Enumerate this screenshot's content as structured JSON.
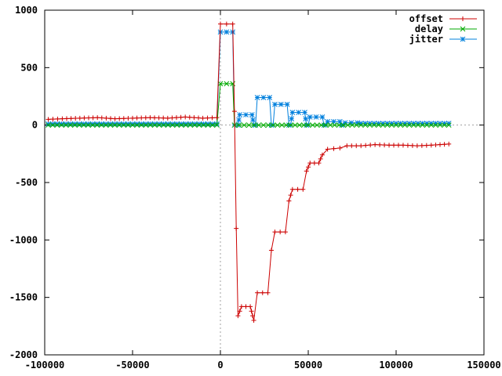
{
  "chart_data": {
    "type": "line",
    "title": "",
    "xlabel": "",
    "ylabel": "",
    "xlim": [
      -100000,
      150000
    ],
    "ylim": [
      -2000,
      1000
    ],
    "x_ticks": [
      -100000,
      -50000,
      0,
      50000,
      100000,
      150000
    ],
    "y_ticks": [
      -2000,
      -1500,
      -1000,
      -500,
      0,
      500,
      1000
    ],
    "x_tick_labels": [
      "-100000",
      "-50000",
      "0",
      "50000",
      "100000",
      "150000"
    ],
    "y_tick_labels": [
      "-2000",
      "-1500",
      "-1000",
      "-500",
      "0",
      "500",
      "1000"
    ],
    "grid": false,
    "zero_axes": true,
    "legend_position": "top-right",
    "series": [
      {
        "name": "offset",
        "color": "#cc0000",
        "marker": "plus",
        "points": [
          [
            -98000,
            50
          ],
          [
            -90000,
            55
          ],
          [
            -80000,
            60
          ],
          [
            -70000,
            65
          ],
          [
            -60000,
            55
          ],
          [
            -50000,
            60
          ],
          [
            -40000,
            65
          ],
          [
            -30000,
            60
          ],
          [
            -20000,
            70
          ],
          [
            -10000,
            60
          ],
          [
            -2000,
            65
          ],
          [
            0,
            880
          ],
          [
            7000,
            880
          ],
          [
            8000,
            120
          ],
          [
            9000,
            -900
          ],
          [
            10000,
            -1660
          ],
          [
            12000,
            -1580
          ],
          [
            17000,
            -1580
          ],
          [
            19000,
            -1700
          ],
          [
            21000,
            -1460
          ],
          [
            27000,
            -1460
          ],
          [
            29000,
            -1090
          ],
          [
            31000,
            -930
          ],
          [
            37000,
            -930
          ],
          [
            39000,
            -660
          ],
          [
            41000,
            -560
          ],
          [
            47000,
            -560
          ],
          [
            49000,
            -400
          ],
          [
            51000,
            -330
          ],
          [
            56000,
            -330
          ],
          [
            58000,
            -260
          ],
          [
            61000,
            -210
          ],
          [
            68000,
            -200
          ],
          [
            72000,
            -180
          ],
          [
            80000,
            -180
          ],
          [
            88000,
            -170
          ],
          [
            96000,
            -175
          ],
          [
            104000,
            -175
          ],
          [
            112000,
            -180
          ],
          [
            120000,
            -175
          ],
          [
            130000,
            -165
          ]
        ]
      },
      {
        "name": "delay",
        "color": "#00aa00",
        "marker": "cross",
        "points": [
          [
            -98000,
            0
          ],
          [
            -50000,
            0
          ],
          [
            -2000,
            0
          ],
          [
            0,
            360
          ],
          [
            7000,
            360
          ],
          [
            8000,
            0
          ],
          [
            30000,
            0
          ],
          [
            60000,
            0
          ],
          [
            90000,
            0
          ],
          [
            130000,
            0
          ]
        ]
      },
      {
        "name": "jitter",
        "color": "#0080dd",
        "marker": "star",
        "points": [
          [
            -98000,
            10
          ],
          [
            -50000,
            10
          ],
          [
            -2000,
            10
          ],
          [
            0,
            810
          ],
          [
            7000,
            810
          ],
          [
            8000,
            0
          ],
          [
            10000,
            0
          ],
          [
            11000,
            90
          ],
          [
            18000,
            90
          ],
          [
            19000,
            0
          ],
          [
            20000,
            0
          ],
          [
            21000,
            240
          ],
          [
            28000,
            240
          ],
          [
            29000,
            0
          ],
          [
            30000,
            0
          ],
          [
            31000,
            180
          ],
          [
            38000,
            180
          ],
          [
            39000,
            0
          ],
          [
            40000,
            0
          ],
          [
            41000,
            110
          ],
          [
            48000,
            110
          ],
          [
            49000,
            0
          ],
          [
            50000,
            0
          ],
          [
            51000,
            70
          ],
          [
            58000,
            70
          ],
          [
            59000,
            0
          ],
          [
            60000,
            0
          ],
          [
            61000,
            30
          ],
          [
            68000,
            30
          ],
          [
            69000,
            0
          ],
          [
            70000,
            0
          ],
          [
            71000,
            20
          ],
          [
            78000,
            20
          ],
          [
            80000,
            15
          ],
          [
            100000,
            15
          ],
          [
            130000,
            15
          ]
        ]
      }
    ]
  }
}
